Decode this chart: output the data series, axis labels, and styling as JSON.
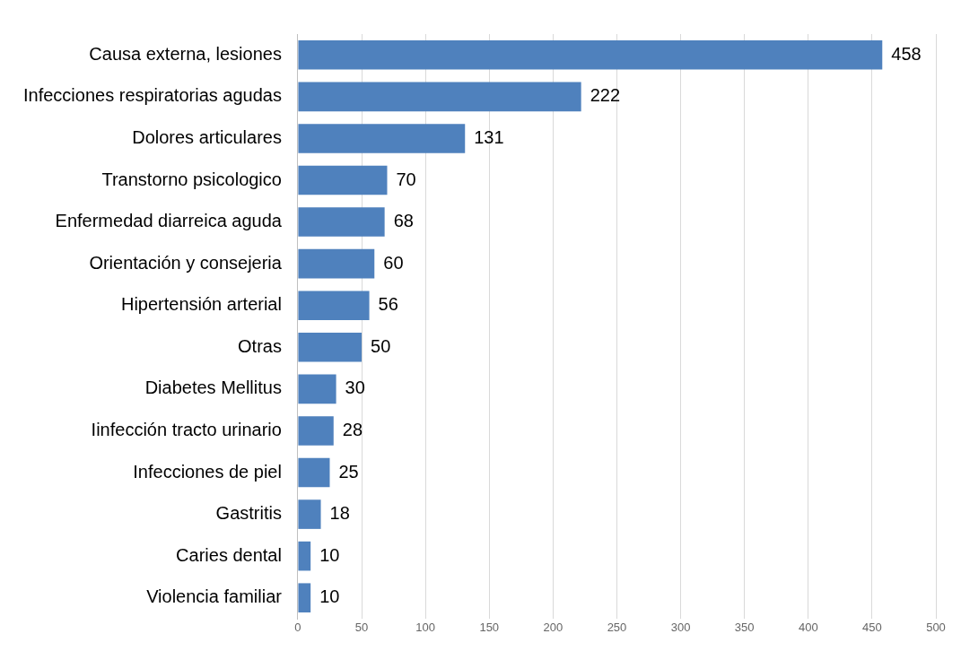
{
  "chart_data": {
    "type": "bar",
    "orientation": "horizontal",
    "categories": [
      "Causa externa, lesiones",
      "Infecciones respiratorias agudas",
      "Dolores articulares",
      "Transtorno psicologico",
      "Enfermedad diarreica aguda",
      "Orientación y consejeria",
      "Hipertensión arterial",
      "Otras",
      "Diabetes Mellitus",
      "Iinfección tracto urinario",
      "Infecciones de piel",
      "Gastritis",
      "Caries dental",
      "Violencia familiar"
    ],
    "values": [
      458,
      222,
      131,
      70,
      68,
      60,
      56,
      50,
      30,
      28,
      25,
      18,
      10,
      10
    ],
    "color": "#4f81bd",
    "data_labels": true,
    "xlim": [
      0,
      500
    ],
    "xticks": [
      0,
      50,
      100,
      150,
      200,
      250,
      300,
      350,
      400,
      450,
      500
    ],
    "grid": "x",
    "legend": false
  }
}
